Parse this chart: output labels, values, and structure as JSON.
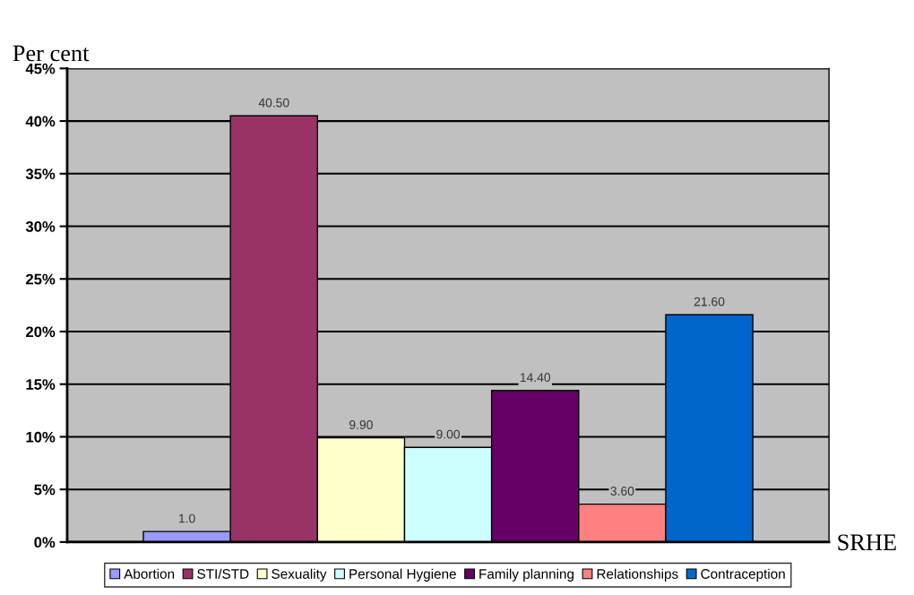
{
  "chart_data": {
    "type": "bar",
    "xlabel": "SRHE",
    "ylabel": "Per cent",
    "categories": [
      null
    ],
    "series": [
      {
        "name": "Abortion",
        "color": "#9999ff",
        "values": [
          1.0
        ],
        "value_labels": [
          "1.0"
        ]
      },
      {
        "name": "STI/STD",
        "color": "#993366",
        "values": [
          40.5
        ],
        "value_labels": [
          "40.50"
        ]
      },
      {
        "name": "Sexuality",
        "color": "#ffffcc",
        "values": [
          9.9
        ],
        "value_labels": [
          "9.90"
        ]
      },
      {
        "name": "Personal Hygiene",
        "color": "#ccffff",
        "values": [
          9.0
        ],
        "value_labels": [
          "9.00"
        ]
      },
      {
        "name": "Family planning",
        "color": "#660066",
        "values": [
          14.4
        ],
        "value_labels": [
          "14.40"
        ]
      },
      {
        "name": "Relationships",
        "color": "#ff8080",
        "values": [
          3.6
        ],
        "value_labels": [
          "3.60"
        ]
      },
      {
        "name": "Contraception",
        "color": "#0066cc",
        "values": [
          21.6
        ],
        "value_labels": [
          "21.60"
        ]
      }
    ],
    "ylim": [
      0,
      45
    ],
    "yticks": [
      {
        "value": 0,
        "label": "0%"
      },
      {
        "value": 5,
        "label": "5%"
      },
      {
        "value": 10,
        "label": "10%"
      },
      {
        "value": 15,
        "label": "15%"
      },
      {
        "value": 20,
        "label": "20%"
      },
      {
        "value": 25,
        "label": "25%"
      },
      {
        "value": 30,
        "label": "30%"
      },
      {
        "value": 35,
        "label": "35%"
      },
      {
        "value": 40,
        "label": "40%"
      },
      {
        "value": 45,
        "label": "45%"
      }
    ],
    "grid": "y",
    "legend": "bottom",
    "tick_labels": "y"
  }
}
